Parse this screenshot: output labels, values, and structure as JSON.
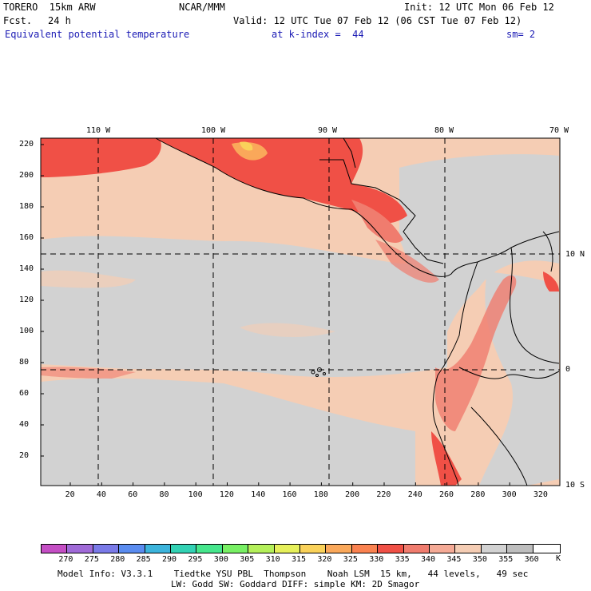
{
  "header": {
    "model": "TORERO  15km ARW",
    "center": "NCAR/MMM",
    "init": "Init: 12 UTC Mon 06 Feb 12",
    "fcst_label": "Fcst.",
    "fcst_hours": "24 h",
    "valid": "Valid: 12 UTC Tue 07 Feb 12 (06 CST Tue 07 Feb 12)",
    "field": "Equivalent potential temperature",
    "level": "at k-index =  44",
    "smoothing": "sm= 2"
  },
  "map": {
    "lon_labels": [
      "110 W",
      "100 W",
      "90 W",
      "80 W",
      "70 W"
    ],
    "lat_labels": [
      "10 N",
      "0",
      "10 S"
    ],
    "y_ticks": [
      "220",
      "200",
      "180",
      "160",
      "140",
      "120",
      "100",
      "80",
      "60",
      "40",
      "20"
    ],
    "x_ticks": [
      "20",
      "40",
      "60",
      "80",
      "100",
      "120",
      "140",
      "160",
      "180",
      "200",
      "220",
      "240",
      "260",
      "280",
      "300",
      "320"
    ],
    "field_range": {
      "min": 270,
      "max": 360,
      "units": "K"
    }
  },
  "colorbar": {
    "labels": [
      "270",
      "275",
      "280",
      "285",
      "290",
      "295",
      "300",
      "305",
      "310",
      "315",
      "320",
      "325",
      "330",
      "335",
      "340",
      "345",
      "350",
      "355",
      "360"
    ],
    "units": "K",
    "colors": [
      "#c44ec4",
      "#a06ad8",
      "#7a7ae8",
      "#5a8cf0",
      "#3cb4dc",
      "#32d2b4",
      "#46e68c",
      "#78f064",
      "#b4f05a",
      "#e6f05a",
      "#fad25a",
      "#faa85a",
      "#fa8250",
      "#f05046",
      "#f07c6e",
      "#f5aa96",
      "#f5cdb4",
      "#d2d2d2",
      "#bebebe",
      "#ffffff"
    ]
  },
  "footer": {
    "line1": "Model Info: V3.3.1    Tiedtke YSU PBL  Thompson    Noah LSM  15 km,   44 levels,   49 sec",
    "line2": "LW: Godd SW: Goddard DIFF: simple KM: 2D Smagor"
  }
}
